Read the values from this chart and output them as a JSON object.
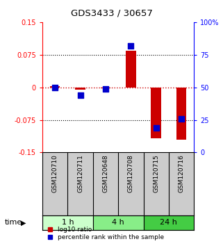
{
  "title": "GDS3433 / 30657",
  "samples": [
    "GSM120710",
    "GSM120711",
    "GSM120648",
    "GSM120708",
    "GSM120715",
    "GSM120716"
  ],
  "log10_ratio": [
    0.003,
    -0.005,
    -0.002,
    0.085,
    -0.118,
    -0.12
  ],
  "percentile_rank": [
    0.5,
    0.44,
    0.49,
    0.82,
    0.19,
    0.26
  ],
  "ylim_left": [
    -0.15,
    0.15
  ],
  "ylim_right": [
    0,
    100
  ],
  "yticks_left": [
    -0.15,
    -0.075,
    0,
    0.075,
    0.15
  ],
  "ytick_labels_left": [
    "-0.15",
    "-0.075",
    "0",
    "0.075",
    "0.15"
  ],
  "yticks_right": [
    0,
    25,
    50,
    75,
    100
  ],
  "ytick_labels_right": [
    "0",
    "25",
    "50",
    "75",
    "100%"
  ],
  "groups": [
    {
      "label": "1 h",
      "cols": [
        0,
        1
      ],
      "color": "#ccffcc"
    },
    {
      "label": "4 h",
      "cols": [
        2,
        3
      ],
      "color": "#88ee88"
    },
    {
      "label": "24 h",
      "cols": [
        4,
        5
      ],
      "color": "#44cc44"
    }
  ],
  "bar_color": "#cc0000",
  "dot_color": "#0000cc",
  "bar_width": 0.4,
  "dot_size": 35,
  "hline_color": "#cc0000",
  "hline_style": ":",
  "grid_style": ":",
  "bg_color": "#ffffff",
  "plot_bg": "#ffffff",
  "sample_box_color": "#cccccc",
  "legend_red_label": "log10 ratio",
  "legend_blue_label": "percentile rank within the sample"
}
